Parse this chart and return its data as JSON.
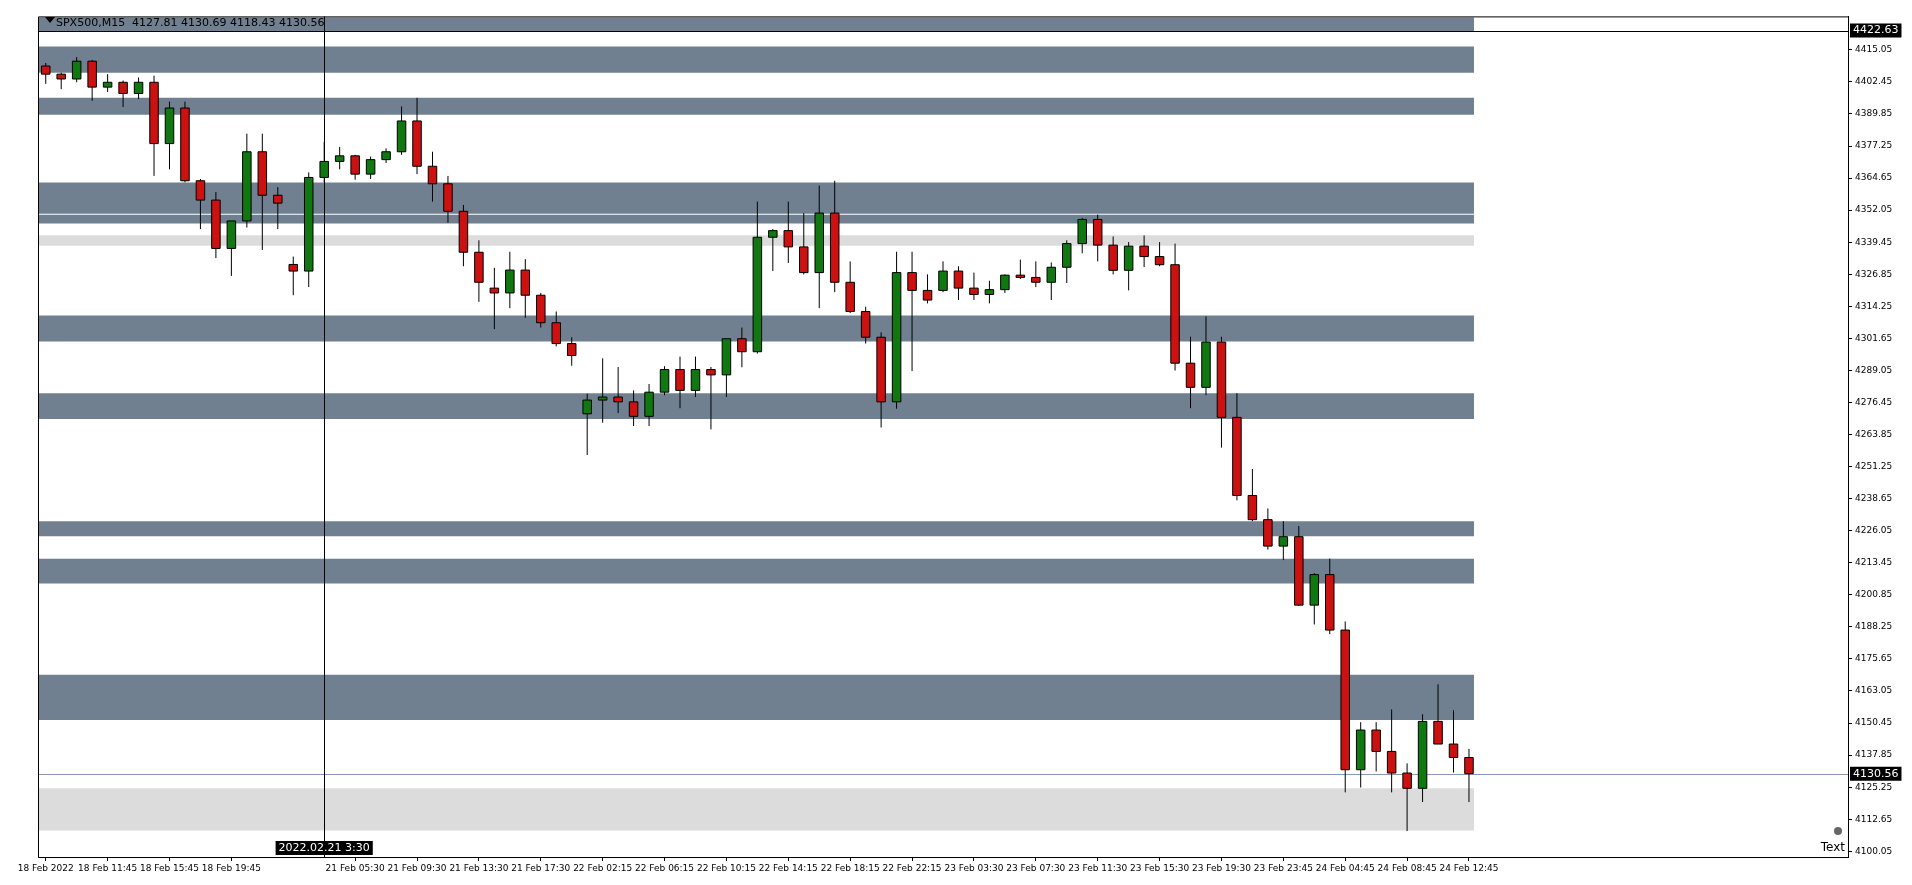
{
  "chart_data": {
    "type": "candlestick",
    "title": "SPX500,M15  4127.81 4130.69 4118.43 4130.56",
    "categories": [
      "18 Feb 2022",
      null,
      null,
      null,
      "18 Feb 11:45",
      null,
      null,
      null,
      "18 Feb 15:45",
      null,
      null,
      null,
      "18 Feb 19:45",
      null,
      null,
      null,
      null,
      null,
      "2022.02.21 3:30",
      null,
      "21 Feb 05:30",
      null,
      null,
      null,
      "21 Feb 09:30",
      null,
      null,
      null,
      "21 Feb 13:30",
      null,
      null,
      null,
      "21 Feb 17:30",
      null,
      null,
      null,
      "22 Feb 02:15",
      null,
      null,
      null,
      "22 Feb 06:15",
      null,
      null,
      null,
      "22 Feb 10:15",
      null,
      null,
      null,
      "22 Feb 14:15",
      null,
      null,
      null,
      "22 Feb 18:15",
      null,
      null,
      null,
      "22 Feb 22:15",
      null,
      null,
      null,
      "23 Feb 03:30",
      null,
      null,
      null,
      "23 Feb 07:30",
      null,
      null,
      null,
      "23 Feb 11:30",
      null,
      null,
      null,
      "23 Feb 15:30",
      null,
      null,
      null,
      "23 Feb 19:30",
      null,
      null,
      null,
      "23 Feb 23:45",
      null,
      null,
      null,
      "24 Feb 04:45",
      null,
      null,
      null,
      "24 Feb 08:45",
      null,
      null,
      null,
      "24 Feb 12:45",
      null,
      null,
      null,
      null,
      null,
      null,
      null,
      null,
      null,
      null,
      null,
      null,
      null,
      null,
      null,
      null,
      null,
      null,
      null,
      null,
      null,
      null,
      null,
      null
    ],
    "ohlc": [
      [
        4408.7,
        4409.9,
        4401.7,
        4405.5
      ],
      [
        4405.5,
        4406.1,
        4399.6,
        4403.6
      ],
      [
        4403.6,
        4412.2,
        4402.3,
        4410.6
      ],
      [
        4410.6,
        4411.1,
        4395.0,
        4400.4
      ],
      [
        4400.4,
        4405.5,
        4398.5,
        4402.3
      ],
      [
        4402.3,
        4403.0,
        4392.6,
        4397.9
      ],
      [
        4397.9,
        4404.2,
        4395.7,
        4402.3
      ],
      [
        4402.3,
        4404.9,
        4365.5,
        4378.2
      ],
      [
        4378.2,
        4394.7,
        4368.1,
        4392.2
      ],
      [
        4392.2,
        4394.7,
        4363.0,
        4363.6
      ],
      [
        4363.6,
        4364.3,
        4344.6,
        4356.0
      ],
      [
        4356.0,
        4359.2,
        4333.2,
        4337.0
      ],
      [
        4337.0,
        4347.8,
        4326.2,
        4347.8
      ],
      [
        4347.8,
        4382.1,
        4345.2,
        4375.0
      ],
      [
        4375.0,
        4382.1,
        4336.4,
        4357.9
      ],
      [
        4357.9,
        4361.1,
        4344.6,
        4354.8
      ],
      [
        4330.7,
        4333.8,
        4318.6,
        4328.1
      ],
      [
        4328.1,
        4366.9,
        4321.8,
        4364.9
      ],
      [
        4364.9,
        4378.8,
        4363.0,
        4371.2
      ],
      [
        4371.2,
        4376.9,
        4368.1,
        4373.4
      ],
      [
        4373.4,
        4373.8,
        4364.0,
        4366.2
      ],
      [
        4366.2,
        4373.1,
        4364.3,
        4371.9
      ],
      [
        4371.9,
        4376.3,
        4370.6,
        4375.0
      ],
      [
        4375.0,
        4392.8,
        4373.8,
        4387.1
      ],
      [
        4387.1,
        4396.2,
        4366.2,
        4369.3
      ],
      [
        4369.3,
        4375.0,
        4355.4,
        4362.4
      ],
      [
        4362.4,
        4365.5,
        4347.1,
        4351.6
      ],
      [
        4351.6,
        4354.1,
        4330.0,
        4335.5
      ],
      [
        4335.5,
        4340.2,
        4316.0,
        4323.7
      ],
      [
        4321.4,
        4329.4,
        4305.3,
        4319.5
      ],
      [
        4319.5,
        4335.7,
        4313.5,
        4328.5
      ],
      [
        4328.5,
        4332.8,
        4309.7,
        4318.6
      ],
      [
        4318.6,
        4319.5,
        4305.9,
        4307.8
      ],
      [
        4307.8,
        4312.2,
        4298.5,
        4299.6
      ],
      [
        4299.6,
        4302.1,
        4290.9,
        4294.9
      ],
      [
        4272.0,
        4279.9,
        4255.8,
        4277.4
      ],
      [
        4277.4,
        4293.8,
        4268.5,
        4278.6
      ],
      [
        4278.6,
        4290.4,
        4272.3,
        4276.7
      ],
      [
        4276.7,
        4281.2,
        4267.2,
        4271.0
      ],
      [
        4271.0,
        4283.7,
        4267.2,
        4280.5
      ],
      [
        4280.5,
        4290.7,
        4279.3,
        4289.4
      ],
      [
        4289.4,
        4294.5,
        4274.2,
        4281.2
      ],
      [
        4281.2,
        4294.5,
        4278.6,
        4289.4
      ],
      [
        4289.4,
        4290.4,
        4265.9,
        4287.3
      ],
      [
        4287.3,
        4301.5,
        4278.6,
        4301.5
      ],
      [
        4301.5,
        4305.9,
        4290.3,
        4296.4
      ],
      [
        4296.4,
        4355.4,
        4295.7,
        4341.4
      ],
      [
        4341.4,
        4344.6,
        4328.1,
        4344.0
      ],
      [
        4344.0,
        4355.4,
        4331.3,
        4337.6
      ],
      [
        4337.6,
        4350.9,
        4326.8,
        4327.5
      ],
      [
        4327.5,
        4361.7,
        4313.5,
        4350.9
      ],
      [
        4350.9,
        4363.6,
        4319.8,
        4323.7
      ],
      [
        4323.7,
        4331.9,
        4311.6,
        4312.2
      ],
      [
        4312.2,
        4314.1,
        4299.6,
        4302.1
      ],
      [
        4302.1,
        4304.0,
        4266.6,
        4276.7
      ],
      [
        4276.7,
        4335.7,
        4274.0,
        4327.5
      ],
      [
        4327.5,
        4335.7,
        4288.8,
        4320.5
      ],
      [
        4320.5,
        4326.8,
        4315.4,
        4316.7
      ],
      [
        4320.5,
        4331.9,
        4319.8,
        4328.1
      ],
      [
        4328.1,
        4330.0,
        4316.7,
        4321.4
      ],
      [
        4321.4,
        4327.5,
        4316.7,
        4318.9
      ],
      [
        4318.9,
        4324.3,
        4315.4,
        4320.8
      ],
      [
        4320.8,
        4326.8,
        4319.5,
        4326.5
      ],
      [
        4326.5,
        4332.6,
        4325.0,
        4325.6
      ],
      [
        4325.6,
        4331.9,
        4321.8,
        4323.7
      ],
      [
        4323.7,
        4331.5,
        4316.7,
        4329.6
      ],
      [
        4329.6,
        4340.2,
        4323.4,
        4338.9
      ],
      [
        4338.9,
        4349.0,
        4335.1,
        4348.4
      ],
      [
        4348.4,
        4350.3,
        4331.9,
        4338.3
      ],
      [
        4338.3,
        4341.7,
        4326.8,
        4328.4
      ],
      [
        4328.4,
        4339.5,
        4320.5,
        4337.9
      ],
      [
        4337.9,
        4342.1,
        4329.7,
        4333.8
      ],
      [
        4333.8,
        4339.5,
        4330.0,
        4330.6
      ],
      [
        4330.6,
        4338.9,
        4289.0,
        4291.9
      ],
      [
        4291.9,
        4302.3,
        4274.2,
        4282.4
      ],
      [
        4282.4,
        4310.3,
        4279.3,
        4300.2
      ],
      [
        4300.2,
        4302.3,
        4258.7,
        4270.6
      ],
      [
        4270.6,
        4280.1,
        4238.0,
        4239.9
      ],
      [
        4239.9,
        4250.3,
        4229.8,
        4230.4
      ],
      [
        4230.4,
        4234.8,
        4218.6,
        4220.0
      ],
      [
        4220.0,
        4229.8,
        4214.5,
        4223.7
      ],
      [
        4223.7,
        4227.9,
        4196.5,
        4196.8
      ],
      [
        4196.8,
        4209.4,
        4189.2,
        4208.8
      ],
      [
        4208.8,
        4215.1,
        4185.4,
        4187.0
      ],
      [
        4187.0,
        4190.4,
        4123.2,
        4132.1
      ],
      [
        4132.1,
        4150.8,
        4125.1,
        4147.7
      ],
      [
        4147.7,
        4150.8,
        4131.4,
        4139.3
      ],
      [
        4139.3,
        4155.8,
        4123.2,
        4130.8
      ],
      [
        4130.8,
        4134.6,
        4108.0,
        4124.8
      ],
      [
        4124.8,
        4153.9,
        4119.4,
        4151.1
      ],
      [
        4151.1,
        4165.7,
        4142.2,
        4142.2
      ],
      [
        4142.2,
        4155.5,
        4131.0,
        4136.9
      ],
      [
        4136.9,
        4140.3,
        4119.4,
        4130.56
      ],
      null,
      null,
      null,
      null,
      null,
      null,
      null,
      null,
      null,
      null,
      null,
      null,
      null,
      null,
      null,
      null,
      null,
      null,
      null,
      null,
      null,
      null,
      null,
      null
    ],
    "colors": [
      "#cc1111",
      "#cc1111",
      "#117711",
      "#cc1111",
      "#117711",
      "#cc1111",
      "#117711",
      "#cc1111",
      "#117711",
      "#cc1111",
      "#cc1111",
      "#cc1111",
      "#117711",
      "#117711",
      "#cc1111",
      "#cc1111",
      "#cc1111",
      "#117711",
      "#117711",
      "#117711",
      "#cc1111",
      "#117711",
      "#117711",
      "#117711",
      "#cc1111",
      "#cc1111",
      "#cc1111",
      "#cc1111",
      "#cc1111",
      "#cc1111",
      "#117711",
      "#cc1111",
      "#cc1111",
      "#cc1111",
      "#cc1111",
      "#117711",
      "#117711",
      "#cc1111",
      "#cc1111",
      "#117711",
      "#117711",
      "#cc1111",
      "#117711",
      "#cc1111",
      "#117711",
      "#cc1111",
      "#117711",
      "#117711",
      "#cc1111",
      "#cc1111",
      "#117711",
      "#cc1111",
      "#cc1111",
      "#cc1111",
      "#cc1111",
      "#117711",
      "#cc1111",
      "#cc1111",
      "#117711",
      "#cc1111",
      "#cc1111",
      "#117711",
      "#117711",
      "#cc1111",
      "#cc1111",
      "#117711",
      "#117711",
      "#117711",
      "#cc1111",
      "#cc1111",
      "#117711",
      "#cc1111",
      "#cc1111",
      "#cc1111",
      "#cc1111",
      "#117711",
      "#cc1111",
      "#cc1111",
      "#cc1111",
      "#cc1111",
      "#117711",
      "#cc1111",
      "#117711",
      "#cc1111",
      "#cc1111",
      "#117711",
      "#cc1111",
      "#cc1111",
      "#cc1111",
      "#117711",
      "#cc1111",
      "#cc1111",
      "#cc1111",
      null,
      null,
      null,
      null,
      null,
      null,
      null,
      null,
      null,
      null,
      null,
      null,
      null,
      null,
      null,
      null,
      null,
      null,
      null,
      null,
      null,
      null,
      null,
      null
    ],
    "ylim": [
      4097.8,
      4428.2
    ],
    "yticks": [
      4100.05,
      4112.65,
      4125.25,
      4137.85,
      4150.45,
      4163.05,
      4175.65,
      4188.25,
      4200.85,
      4213.45,
      4226.05,
      4238.65,
      4251.25,
      4263.85,
      4276.45,
      4289.05,
      4301.65,
      4314.25,
      4326.85,
      4339.45,
      4352.05,
      4364.65,
      4377.25,
      4389.85,
      4402.45,
      4415.05
    ],
    "bands": [
      {
        "axis": "y",
        "from": 4422.2,
        "to": 4427.8,
        "color": "#708090"
      },
      {
        "axis": "y",
        "from": 4406.1,
        "to": 4416.4,
        "color": "#708090"
      },
      {
        "axis": "y",
        "from": 4389.5,
        "to": 4396.2,
        "color": "#708090"
      },
      {
        "axis": "y",
        "from": 4350.6,
        "to": 4362.9,
        "color": "#708090"
      },
      {
        "axis": "y",
        "from": 4346.8,
        "to": 4350.2,
        "color": "#708090"
      },
      {
        "axis": "y",
        "from": 4338.1,
        "to": 4342.2,
        "color": "#dcdcdc"
      },
      {
        "axis": "y",
        "from": 4300.4,
        "to": 4310.6,
        "color": "#708090"
      },
      {
        "axis": "y",
        "from": 4270.0,
        "to": 4280.1,
        "color": "#708090"
      },
      {
        "axis": "y",
        "from": 4223.9,
        "to": 4229.8,
        "color": "#708090"
      },
      {
        "axis": "y",
        "from": 4205.3,
        "to": 4215.0,
        "color": "#708090"
      },
      {
        "axis": "y",
        "from": 4151.6,
        "to": 4169.4,
        "color": "#708090"
      },
      {
        "axis": "y",
        "from": 4108.2,
        "to": 4124.8,
        "color": "#dcdcdc"
      }
    ],
    "ref_lines": [
      {
        "axis": "y",
        "value": 4422.63,
        "label": "4422.63",
        "color": "#000000",
        "line_style": "solid"
      },
      {
        "axis": "y",
        "value": 4130.56,
        "label": "4130.56",
        "color": "#8898b0",
        "line_style": "solid"
      },
      {
        "axis": "x",
        "value": "2022.02.21 3:30",
        "color": "#000000",
        "line_style": "solid"
      }
    ],
    "annotations": [
      "Text"
    ]
  }
}
